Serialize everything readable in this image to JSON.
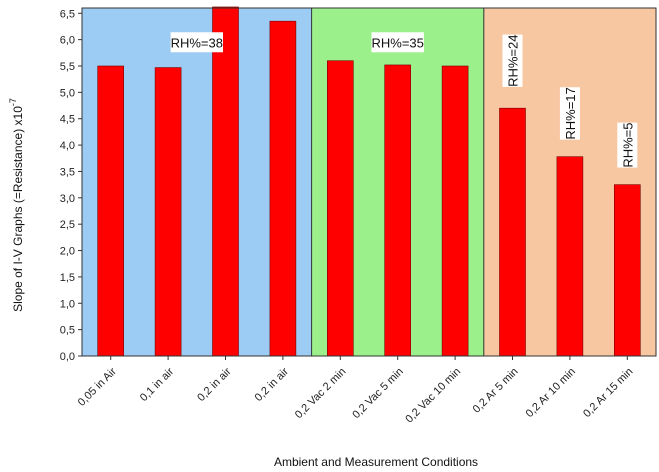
{
  "chart_data": {
    "type": "bar",
    "ylabel": "Slope of I-V Graphs (=Resistance) x10",
    "ylabel_exponent": "-7",
    "xlabel": "Ambient and Measurement Conditions",
    "ylim": [
      0,
      6.6
    ],
    "yticks": [
      "0,0",
      "0,5",
      "1,0",
      "1,5",
      "2,0",
      "2,5",
      "3,0",
      "3,5",
      "4,0",
      "4,5",
      "5,0",
      "5,5",
      "6,0",
      "6,5"
    ],
    "ytick_values": [
      0,
      0.5,
      1,
      1.5,
      2,
      2.5,
      3,
      3.5,
      4,
      4.5,
      5,
      5.5,
      6,
      6.5
    ],
    "categories": [
      "0,05 in Air",
      "0,1 in air",
      "0,2 in air",
      "0,2 in air",
      "0,2 Vac 2 min",
      "0,2 Vac 5 min",
      "0,2 Vac 10 min",
      "0,2 Ar 5 min",
      "0,2 Ar 10 min",
      "0,2 Ar 15 min"
    ],
    "values": [
      5.5,
      5.47,
      6.62,
      6.35,
      5.6,
      5.52,
      5.5,
      4.7,
      3.78,
      3.25
    ],
    "bar_color": "#ff0000",
    "regions": [
      {
        "from": 0,
        "to": 3,
        "color": "#9ccbf3"
      },
      {
        "from": 4,
        "to": 6,
        "color": "#9cf08c"
      },
      {
        "from": 7,
        "to": 9,
        "color": "#f7c7a2"
      }
    ],
    "annotations": [
      {
        "text": "RH%=38",
        "category": 1.5,
        "y": 5.95,
        "rotate": false
      },
      {
        "text": "RH%=35",
        "category": 5,
        "y": 5.95,
        "rotate": false
      },
      {
        "text": "RH%=24",
        "category": 7,
        "y": 5.6,
        "rotate": true
      },
      {
        "text": "RH%=17",
        "category": 8,
        "y": 4.6,
        "rotate": true
      },
      {
        "text": "RH%=5",
        "category": 9,
        "y": 4.0,
        "rotate": true
      }
    ],
    "grid": false,
    "legend": "none"
  }
}
